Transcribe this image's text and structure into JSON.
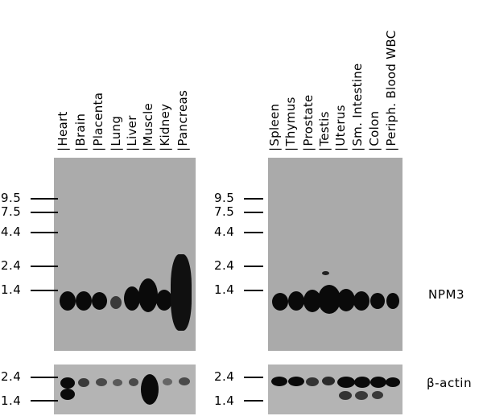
{
  "panels": [
    {
      "lanes": [
        "Heart",
        "Brain",
        "Placenta",
        "Lung",
        "Liver",
        "Muscle",
        "Kidney",
        "Pancreas"
      ],
      "markers_top": [
        "9.5",
        "7.5",
        "4.4",
        "2.4",
        "1.4"
      ],
      "markers_bottom": [
        "2.4",
        "1.4"
      ]
    },
    {
      "lanes": [
        "Spleen",
        "Thymus",
        "Prostate",
        "Testis",
        "Uterus",
        "Sm. Intestine",
        "Colon",
        "Periph. Blood WBC"
      ],
      "markers_top": [
        "9.5",
        "7.5",
        "4.4",
        "2.4",
        "1.4"
      ],
      "markers_bottom": [
        "2.4",
        "1.4"
      ]
    }
  ],
  "labels": {
    "top_blot": "NPM3",
    "bottom_blot": "β-actin"
  }
}
